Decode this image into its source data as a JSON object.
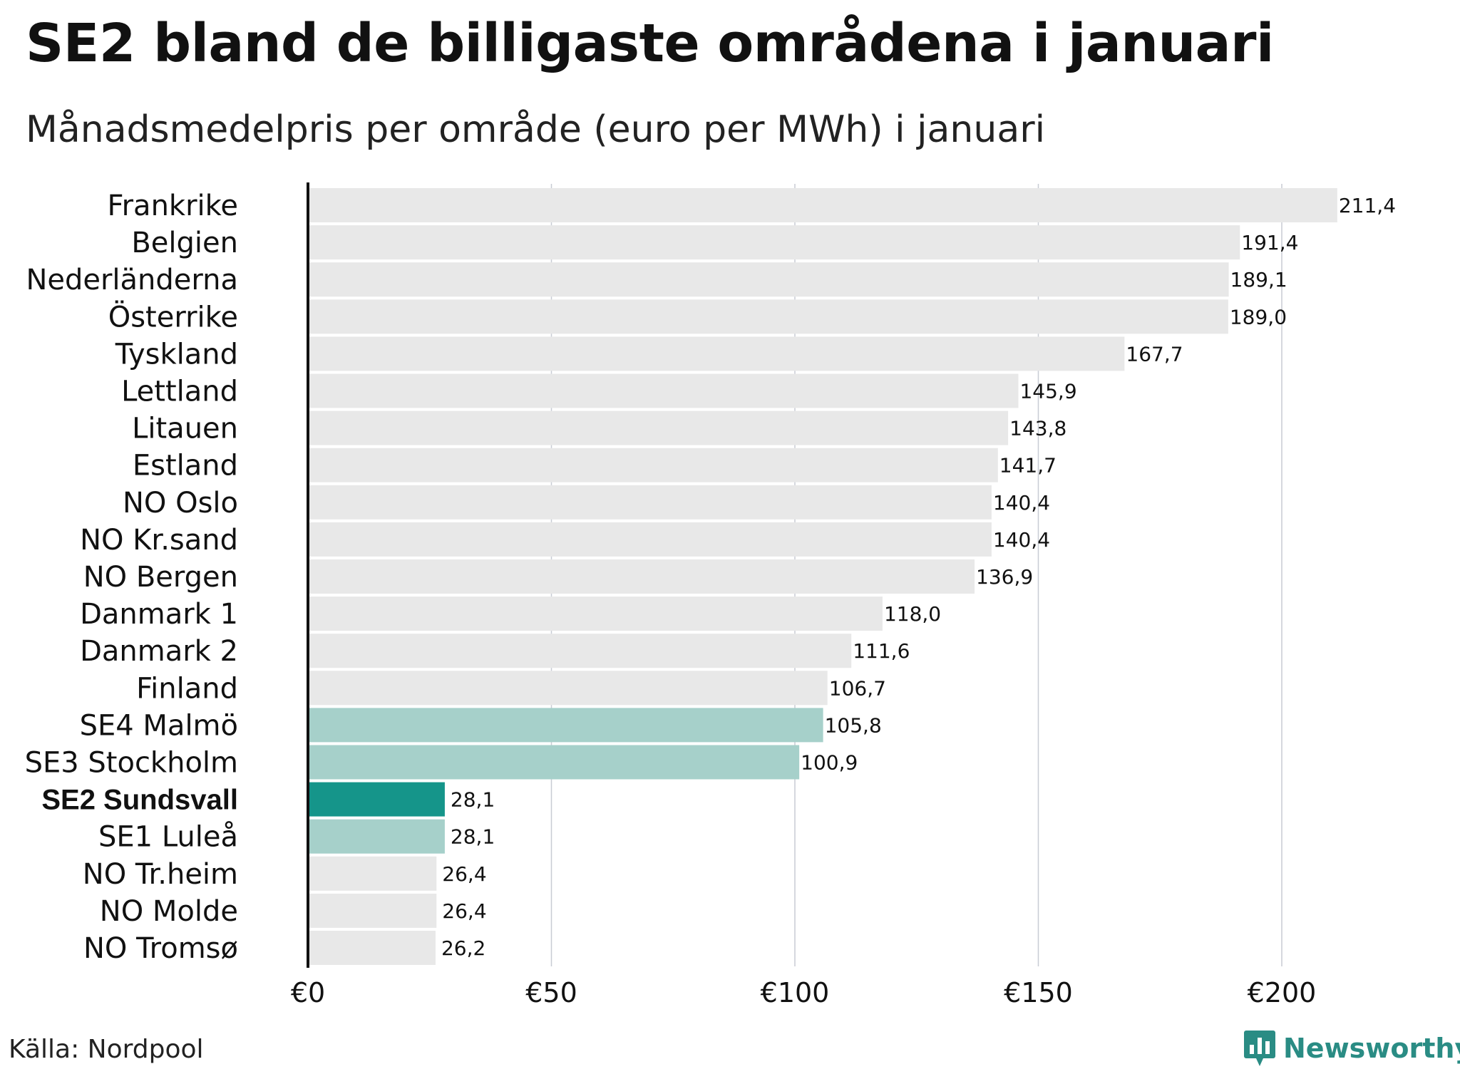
{
  "header": {
    "title": "SE2 bland de billigaste områdena i januari",
    "subtitle": "Månadsmedelpris per område (euro per MWh) i januari"
  },
  "footer": {
    "source": "Källa: Nordpool",
    "brand": "Newsworthy"
  },
  "colors": {
    "default_bar": "#e8e8e8",
    "swedish_bar": "#a6d0ca",
    "highlight_bar": "#15958a",
    "grid": "#c8ccd4",
    "axis": "#111111",
    "brand": "#2a8c84"
  },
  "chart_data": {
    "type": "bar",
    "orientation": "horizontal",
    "title": "SE2 bland de billigaste områdena i januari",
    "subtitle": "Månadsmedelpris per område (euro per MWh) i januari",
    "xlabel": "",
    "ylabel": "",
    "xlim": [
      0,
      230
    ],
    "grid": true,
    "ticks": [
      {
        "value": 0,
        "label": "€0"
      },
      {
        "value": 50,
        "label": "€50"
      },
      {
        "value": 100,
        "label": "€100"
      },
      {
        "value": 150,
        "label": "€150"
      },
      {
        "value": 200,
        "label": "€200"
      }
    ],
    "categories": [
      "Frankrike",
      "Belgien",
      "Nederländerna",
      "Österrike",
      "Tyskland",
      "Lettland",
      "Litauen",
      "Estland",
      "NO Oslo",
      "NO Kr.sand",
      "NO Bergen",
      "Danmark 1",
      "Danmark 2",
      "Finland",
      "SE4 Malmö",
      "SE3 Stockholm",
      "SE2 Sundsvall",
      "SE1 Luleå",
      "NO Tr.heim",
      "NO Molde",
      "NO Tromsø"
    ],
    "values": [
      211.4,
      191.4,
      189.1,
      189.0,
      167.7,
      145.9,
      143.8,
      141.7,
      140.4,
      140.4,
      136.9,
      118.0,
      111.6,
      106.7,
      105.8,
      100.9,
      28.1,
      28.1,
      26.4,
      26.4,
      26.2
    ],
    "value_labels": [
      "211,4",
      "191,4",
      "189,1",
      "189,0",
      "167,7",
      "145,9",
      "143,8",
      "141,7",
      "140,4",
      "140,4",
      "136,9",
      "118,0",
      "111,6",
      "106,7",
      "105,8",
      "100,9",
      "28,1",
      "28,1",
      "26,4",
      "26,4",
      "26,2"
    ],
    "groups": [
      "other",
      "other",
      "other",
      "other",
      "other",
      "other",
      "other",
      "other",
      "other",
      "other",
      "other",
      "other",
      "other",
      "other",
      "sweden",
      "sweden",
      "highlight",
      "sweden",
      "other",
      "other",
      "other"
    ]
  }
}
